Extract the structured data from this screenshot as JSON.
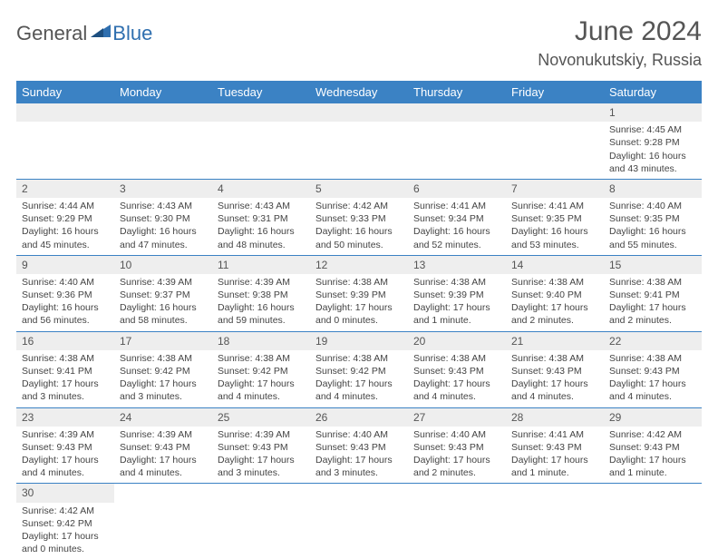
{
  "logo": {
    "part1": "General",
    "part2": "Blue"
  },
  "title": "June 2024",
  "location": "Novonukutskiy, Russia",
  "colors": {
    "header_bg": "#3b82c4",
    "header_text": "#ffffff",
    "daynum_bg": "#eeeeee",
    "border": "#3b82c4",
    "text": "#444444",
    "logo_gray": "#555555",
    "logo_blue": "#2f6faf"
  },
  "day_names": [
    "Sunday",
    "Monday",
    "Tuesday",
    "Wednesday",
    "Thursday",
    "Friday",
    "Saturday"
  ],
  "weeks": [
    [
      null,
      null,
      null,
      null,
      null,
      null,
      {
        "n": "1",
        "sr": "Sunrise: 4:45 AM",
        "ss": "Sunset: 9:28 PM",
        "dl1": "Daylight: 16 hours",
        "dl2": "and 43 minutes."
      }
    ],
    [
      {
        "n": "2",
        "sr": "Sunrise: 4:44 AM",
        "ss": "Sunset: 9:29 PM",
        "dl1": "Daylight: 16 hours",
        "dl2": "and 45 minutes."
      },
      {
        "n": "3",
        "sr": "Sunrise: 4:43 AM",
        "ss": "Sunset: 9:30 PM",
        "dl1": "Daylight: 16 hours",
        "dl2": "and 47 minutes."
      },
      {
        "n": "4",
        "sr": "Sunrise: 4:43 AM",
        "ss": "Sunset: 9:31 PM",
        "dl1": "Daylight: 16 hours",
        "dl2": "and 48 minutes."
      },
      {
        "n": "5",
        "sr": "Sunrise: 4:42 AM",
        "ss": "Sunset: 9:33 PM",
        "dl1": "Daylight: 16 hours",
        "dl2": "and 50 minutes."
      },
      {
        "n": "6",
        "sr": "Sunrise: 4:41 AM",
        "ss": "Sunset: 9:34 PM",
        "dl1": "Daylight: 16 hours",
        "dl2": "and 52 minutes."
      },
      {
        "n": "7",
        "sr": "Sunrise: 4:41 AM",
        "ss": "Sunset: 9:35 PM",
        "dl1": "Daylight: 16 hours",
        "dl2": "and 53 minutes."
      },
      {
        "n": "8",
        "sr": "Sunrise: 4:40 AM",
        "ss": "Sunset: 9:35 PM",
        "dl1": "Daylight: 16 hours",
        "dl2": "and 55 minutes."
      }
    ],
    [
      {
        "n": "9",
        "sr": "Sunrise: 4:40 AM",
        "ss": "Sunset: 9:36 PM",
        "dl1": "Daylight: 16 hours",
        "dl2": "and 56 minutes."
      },
      {
        "n": "10",
        "sr": "Sunrise: 4:39 AM",
        "ss": "Sunset: 9:37 PM",
        "dl1": "Daylight: 16 hours",
        "dl2": "and 58 minutes."
      },
      {
        "n": "11",
        "sr": "Sunrise: 4:39 AM",
        "ss": "Sunset: 9:38 PM",
        "dl1": "Daylight: 16 hours",
        "dl2": "and 59 minutes."
      },
      {
        "n": "12",
        "sr": "Sunrise: 4:38 AM",
        "ss": "Sunset: 9:39 PM",
        "dl1": "Daylight: 17 hours",
        "dl2": "and 0 minutes."
      },
      {
        "n": "13",
        "sr": "Sunrise: 4:38 AM",
        "ss": "Sunset: 9:39 PM",
        "dl1": "Daylight: 17 hours",
        "dl2": "and 1 minute."
      },
      {
        "n": "14",
        "sr": "Sunrise: 4:38 AM",
        "ss": "Sunset: 9:40 PM",
        "dl1": "Daylight: 17 hours",
        "dl2": "and 2 minutes."
      },
      {
        "n": "15",
        "sr": "Sunrise: 4:38 AM",
        "ss": "Sunset: 9:41 PM",
        "dl1": "Daylight: 17 hours",
        "dl2": "and 2 minutes."
      }
    ],
    [
      {
        "n": "16",
        "sr": "Sunrise: 4:38 AM",
        "ss": "Sunset: 9:41 PM",
        "dl1": "Daylight: 17 hours",
        "dl2": "and 3 minutes."
      },
      {
        "n": "17",
        "sr": "Sunrise: 4:38 AM",
        "ss": "Sunset: 9:42 PM",
        "dl1": "Daylight: 17 hours",
        "dl2": "and 3 minutes."
      },
      {
        "n": "18",
        "sr": "Sunrise: 4:38 AM",
        "ss": "Sunset: 9:42 PM",
        "dl1": "Daylight: 17 hours",
        "dl2": "and 4 minutes."
      },
      {
        "n": "19",
        "sr": "Sunrise: 4:38 AM",
        "ss": "Sunset: 9:42 PM",
        "dl1": "Daylight: 17 hours",
        "dl2": "and 4 minutes."
      },
      {
        "n": "20",
        "sr": "Sunrise: 4:38 AM",
        "ss": "Sunset: 9:43 PM",
        "dl1": "Daylight: 17 hours",
        "dl2": "and 4 minutes."
      },
      {
        "n": "21",
        "sr": "Sunrise: 4:38 AM",
        "ss": "Sunset: 9:43 PM",
        "dl1": "Daylight: 17 hours",
        "dl2": "and 4 minutes."
      },
      {
        "n": "22",
        "sr": "Sunrise: 4:38 AM",
        "ss": "Sunset: 9:43 PM",
        "dl1": "Daylight: 17 hours",
        "dl2": "and 4 minutes."
      }
    ],
    [
      {
        "n": "23",
        "sr": "Sunrise: 4:39 AM",
        "ss": "Sunset: 9:43 PM",
        "dl1": "Daylight: 17 hours",
        "dl2": "and 4 minutes."
      },
      {
        "n": "24",
        "sr": "Sunrise: 4:39 AM",
        "ss": "Sunset: 9:43 PM",
        "dl1": "Daylight: 17 hours",
        "dl2": "and 4 minutes."
      },
      {
        "n": "25",
        "sr": "Sunrise: 4:39 AM",
        "ss": "Sunset: 9:43 PM",
        "dl1": "Daylight: 17 hours",
        "dl2": "and 3 minutes."
      },
      {
        "n": "26",
        "sr": "Sunrise: 4:40 AM",
        "ss": "Sunset: 9:43 PM",
        "dl1": "Daylight: 17 hours",
        "dl2": "and 3 minutes."
      },
      {
        "n": "27",
        "sr": "Sunrise: 4:40 AM",
        "ss": "Sunset: 9:43 PM",
        "dl1": "Daylight: 17 hours",
        "dl2": "and 2 minutes."
      },
      {
        "n": "28",
        "sr": "Sunrise: 4:41 AM",
        "ss": "Sunset: 9:43 PM",
        "dl1": "Daylight: 17 hours",
        "dl2": "and 1 minute."
      },
      {
        "n": "29",
        "sr": "Sunrise: 4:42 AM",
        "ss": "Sunset: 9:43 PM",
        "dl1": "Daylight: 17 hours",
        "dl2": "and 1 minute."
      }
    ],
    [
      {
        "n": "30",
        "sr": "Sunrise: 4:42 AM",
        "ss": "Sunset: 9:42 PM",
        "dl1": "Daylight: 17 hours",
        "dl2": "and 0 minutes."
      },
      null,
      null,
      null,
      null,
      null,
      null
    ]
  ]
}
